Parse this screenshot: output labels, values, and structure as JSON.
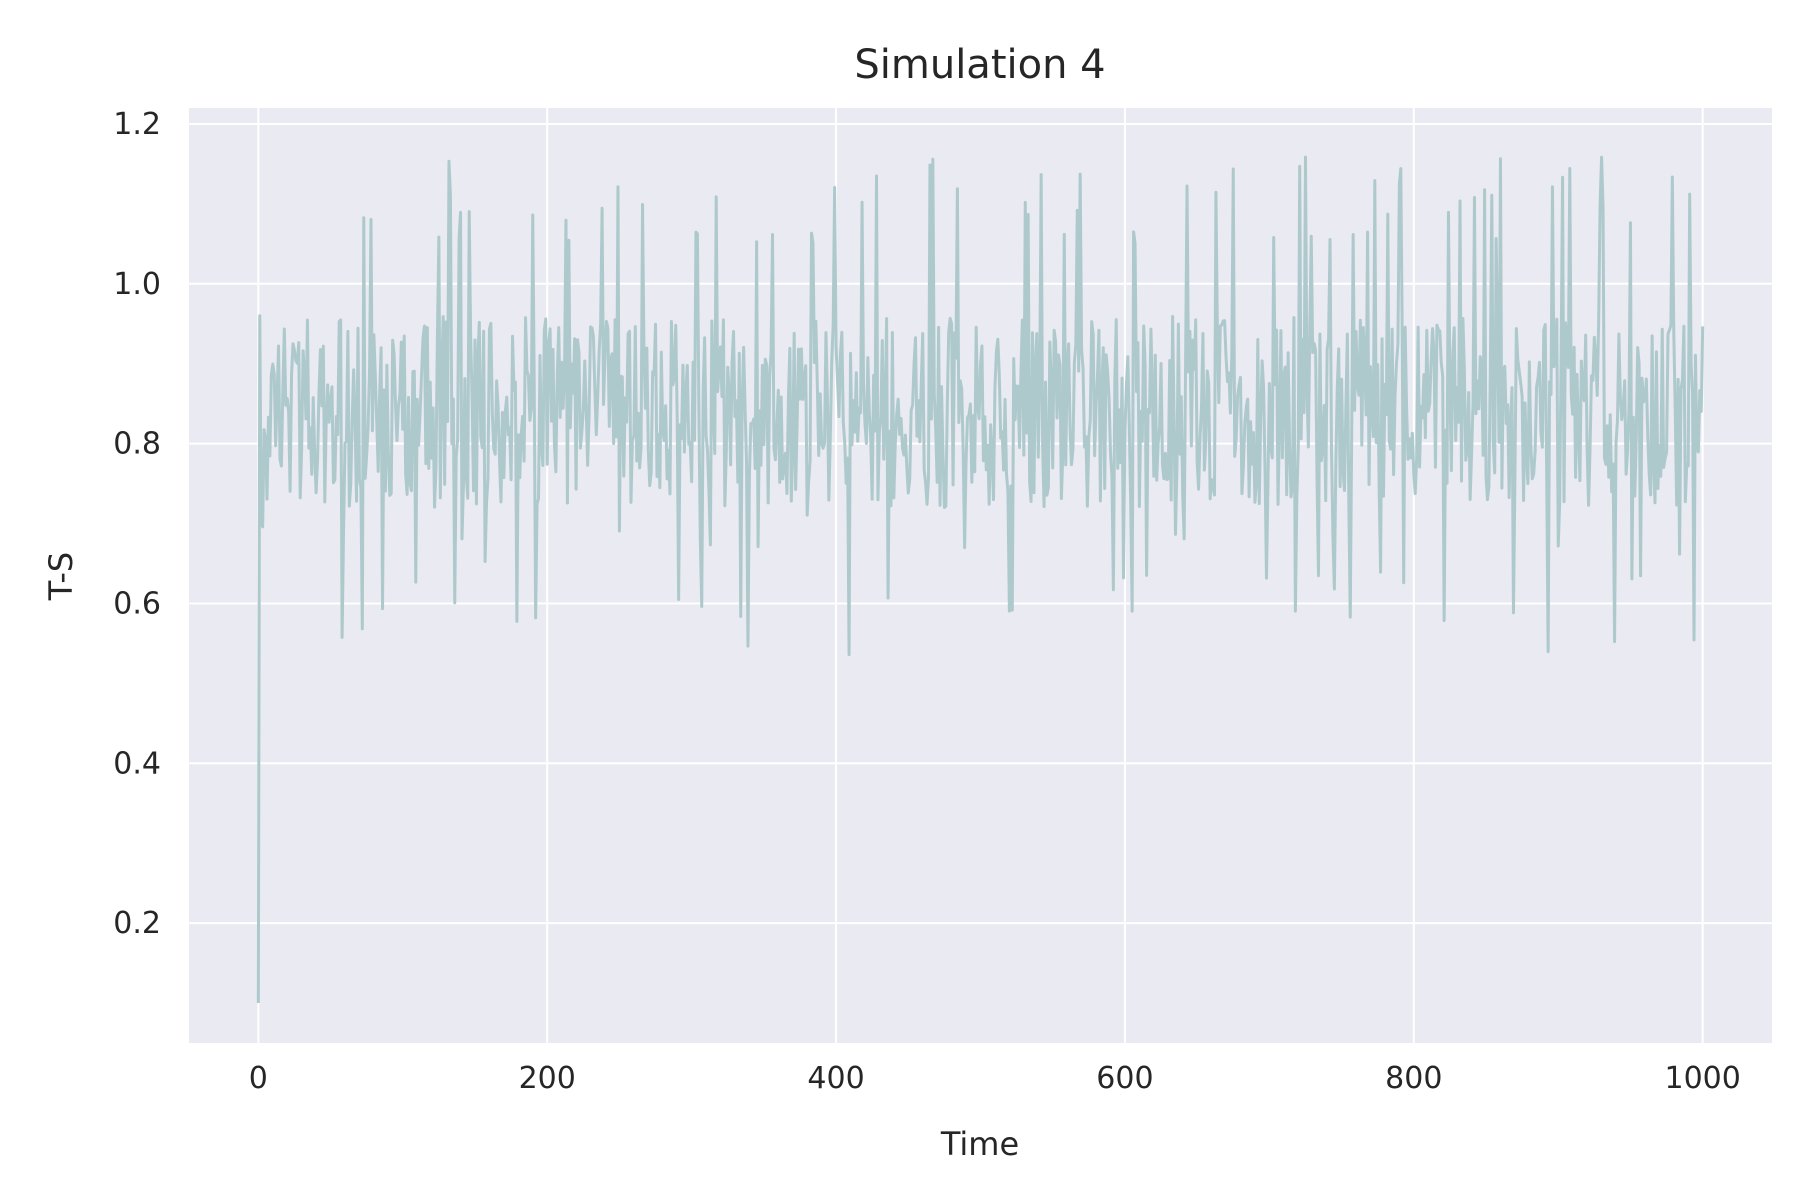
{
  "chart_data": {
    "type": "line",
    "title": "Simulation 4",
    "xlabel": "Time",
    "ylabel": "T-S",
    "xlim": [
      -48,
      1048
    ],
    "ylim": [
      0.05,
      1.22
    ],
    "xticks": [
      0,
      200,
      400,
      600,
      800,
      1000
    ],
    "yticks": [
      0.2,
      0.4,
      0.6,
      0.8,
      1.0,
      1.2
    ],
    "xtick_labels": [
      "0",
      "200",
      "400",
      "600",
      "800",
      "1000"
    ],
    "ytick_labels": [
      "0.2",
      "0.4",
      "0.6",
      "0.8",
      "1.0",
      "1.2"
    ],
    "grid": true,
    "background": "#eaeaf2",
    "line_color": "#aec9cc",
    "series": [
      {
        "x_start": 0,
        "x_end": 1000,
        "n_points": 1001,
        "initial_values": [
          0.1,
          0.96,
          0.7
        ],
        "baseline": 0.84,
        "oscillation_range": [
          0.68,
          1.0
        ],
        "spike_high_range": [
          1.05,
          1.16
        ],
        "spike_low_range": [
          0.53,
          0.72
        ]
      }
    ]
  }
}
